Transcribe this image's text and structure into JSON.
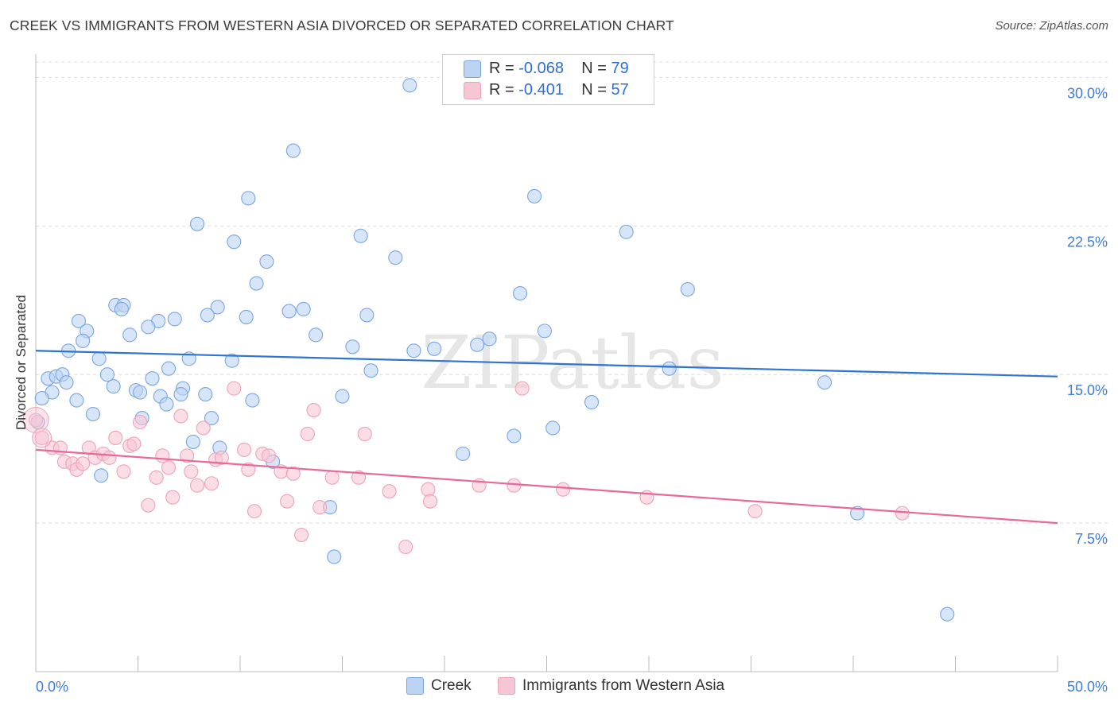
{
  "title": "CREEK VS IMMIGRANTS FROM WESTERN ASIA DIVORCED OR SEPARATED CORRELATION CHART",
  "source": "Source: ZipAtlas.com",
  "watermark": "ZIPatlas",
  "legend": {
    "items": [
      {
        "r_label": "R = ",
        "r_value": "-0.068",
        "n_label": "N = ",
        "n_value": "79"
      },
      {
        "r_label": "R = ",
        "r_value": "-0.401",
        "n_label": "N = ",
        "n_value": "57"
      }
    ]
  },
  "bottom_legend": [
    "Creek",
    "Immigrants from Western Asia"
  ],
  "colors": {
    "creek_fill": "#bcd3f3",
    "creek_stroke": "#7aa6e0",
    "creek_line": "#2e74d0",
    "imm_fill": "#f7c6d4",
    "imm_stroke": "#eda2b8",
    "imm_line": "#e6699a",
    "axis_label": "#3f7dd6",
    "grid": "#dcdcdc"
  },
  "chart_data": {
    "type": "scatter",
    "title": "CREEK VS IMMIGRANTS FROM WESTERN ASIA DIVORCED OR SEPARATED CORRELATION CHART",
    "xlabel": "",
    "ylabel": "Divorced or Separated",
    "xlim": [
      0,
      50
    ],
    "ylim": [
      0,
      31.5
    ],
    "x_tick_labels": [
      "0.0%",
      "50.0%"
    ],
    "y_ticks": [
      7.5,
      15.0,
      22.5,
      30.0
    ],
    "y_tick_labels": [
      "7.5%",
      "15.0%",
      "22.5%",
      "30.0%"
    ],
    "grid": "horizontal-dashed",
    "legend_position": "top-center",
    "series": [
      {
        "name": "Creek",
        "trend": {
          "x": [
            0,
            50
          ],
          "y": [
            16.2,
            14.9
          ]
        },
        "points": [
          [
            18.3,
            29.6
          ],
          [
            12.6,
            26.3
          ],
          [
            10.4,
            23.9
          ],
          [
            24.4,
            24.0
          ],
          [
            7.9,
            22.6
          ],
          [
            15.9,
            22.0
          ],
          [
            28.9,
            22.2
          ],
          [
            9.7,
            21.7
          ],
          [
            17.6,
            20.9
          ],
          [
            11.3,
            20.7
          ],
          [
            10.8,
            19.6
          ],
          [
            23.7,
            19.1
          ],
          [
            31.9,
            19.3
          ],
          [
            3.9,
            18.5
          ],
          [
            4.3,
            18.5
          ],
          [
            4.2,
            18.3
          ],
          [
            8.9,
            18.4
          ],
          [
            12.4,
            18.2
          ],
          [
            13.1,
            18.3
          ],
          [
            16.2,
            18.0
          ],
          [
            2.1,
            17.7
          ],
          [
            6.0,
            17.7
          ],
          [
            6.8,
            17.8
          ],
          [
            8.4,
            18.0
          ],
          [
            10.3,
            17.9
          ],
          [
            2.5,
            17.2
          ],
          [
            5.5,
            17.4
          ],
          [
            4.6,
            17.0
          ],
          [
            13.7,
            17.0
          ],
          [
            24.9,
            17.2
          ],
          [
            2.3,
            16.7
          ],
          [
            1.6,
            16.2
          ],
          [
            15.5,
            16.4
          ],
          [
            19.5,
            16.3
          ],
          [
            18.5,
            16.2
          ],
          [
            21.6,
            16.5
          ],
          [
            22.2,
            16.8
          ],
          [
            3.1,
            15.8
          ],
          [
            7.5,
            15.8
          ],
          [
            9.6,
            15.7
          ],
          [
            6.5,
            15.3
          ],
          [
            16.4,
            15.2
          ],
          [
            31.0,
            15.3
          ],
          [
            0.6,
            14.8
          ],
          [
            1.0,
            14.9
          ],
          [
            1.3,
            15.0
          ],
          [
            3.5,
            15.0
          ],
          [
            1.5,
            14.6
          ],
          [
            5.7,
            14.8
          ],
          [
            3.8,
            14.4
          ],
          [
            7.2,
            14.3
          ],
          [
            0.8,
            14.1
          ],
          [
            4.9,
            14.2
          ],
          [
            5.1,
            14.1
          ],
          [
            7.1,
            14.0
          ],
          [
            8.3,
            14.0
          ],
          [
            6.1,
            13.9
          ],
          [
            15.0,
            13.9
          ],
          [
            0.3,
            13.8
          ],
          [
            2.0,
            13.7
          ],
          [
            10.6,
            13.7
          ],
          [
            6.4,
            13.5
          ],
          [
            27.2,
            13.6
          ],
          [
            38.6,
            14.6
          ],
          [
            2.8,
            13.0
          ],
          [
            5.2,
            12.8
          ],
          [
            8.6,
            12.8
          ],
          [
            0.1,
            12.6
          ],
          [
            25.3,
            12.3
          ],
          [
            23.4,
            11.9
          ],
          [
            7.7,
            11.6
          ],
          [
            9.0,
            11.3
          ],
          [
            20.9,
            11.0
          ],
          [
            11.6,
            10.6
          ],
          [
            3.2,
            9.9
          ],
          [
            14.4,
            8.3
          ],
          [
            40.2,
            8.0
          ],
          [
            14.6,
            5.8
          ],
          [
            44.6,
            2.9
          ]
        ]
      },
      {
        "name": "Immigrants from Western Asia",
        "trend": {
          "x": [
            0,
            50
          ],
          "y": [
            11.2,
            7.5
          ]
        },
        "points": [
          [
            0.0,
            12.7
          ],
          [
            0.3,
            11.8
          ],
          [
            0.8,
            11.3
          ],
          [
            1.2,
            11.3
          ],
          [
            1.4,
            10.6
          ],
          [
            1.8,
            10.5
          ],
          [
            2.0,
            10.2
          ],
          [
            2.3,
            10.5
          ],
          [
            2.6,
            11.3
          ],
          [
            2.9,
            10.8
          ],
          [
            3.3,
            11.0
          ],
          [
            3.6,
            10.8
          ],
          [
            3.9,
            11.8
          ],
          [
            4.3,
            10.1
          ],
          [
            4.6,
            11.4
          ],
          [
            4.8,
            11.5
          ],
          [
            5.1,
            12.6
          ],
          [
            5.5,
            8.4
          ],
          [
            5.9,
            9.8
          ],
          [
            6.2,
            10.9
          ],
          [
            6.5,
            10.3
          ],
          [
            6.7,
            8.8
          ],
          [
            7.1,
            12.9
          ],
          [
            7.4,
            10.9
          ],
          [
            7.6,
            10.1
          ],
          [
            7.9,
            9.4
          ],
          [
            8.2,
            12.3
          ],
          [
            8.6,
            9.5
          ],
          [
            8.8,
            10.7
          ],
          [
            9.1,
            10.8
          ],
          [
            9.7,
            14.3
          ],
          [
            10.2,
            11.2
          ],
          [
            10.4,
            10.2
          ],
          [
            10.7,
            8.1
          ],
          [
            11.1,
            11.0
          ],
          [
            11.4,
            10.9
          ],
          [
            12.0,
            10.1
          ],
          [
            12.3,
            8.6
          ],
          [
            12.6,
            10.0
          ],
          [
            13.0,
            6.9
          ],
          [
            13.3,
            12.0
          ],
          [
            13.6,
            13.2
          ],
          [
            13.9,
            8.3
          ],
          [
            14.5,
            9.8
          ],
          [
            15.8,
            9.8
          ],
          [
            16.1,
            12.0
          ],
          [
            17.3,
            9.1
          ],
          [
            18.1,
            6.3
          ],
          [
            19.2,
            9.2
          ],
          [
            19.3,
            8.6
          ],
          [
            21.7,
            9.4
          ],
          [
            23.4,
            9.4
          ],
          [
            23.8,
            14.3
          ],
          [
            25.8,
            9.2
          ],
          [
            29.9,
            8.8
          ],
          [
            35.2,
            8.1
          ],
          [
            42.4,
            8.0
          ]
        ]
      }
    ]
  }
}
